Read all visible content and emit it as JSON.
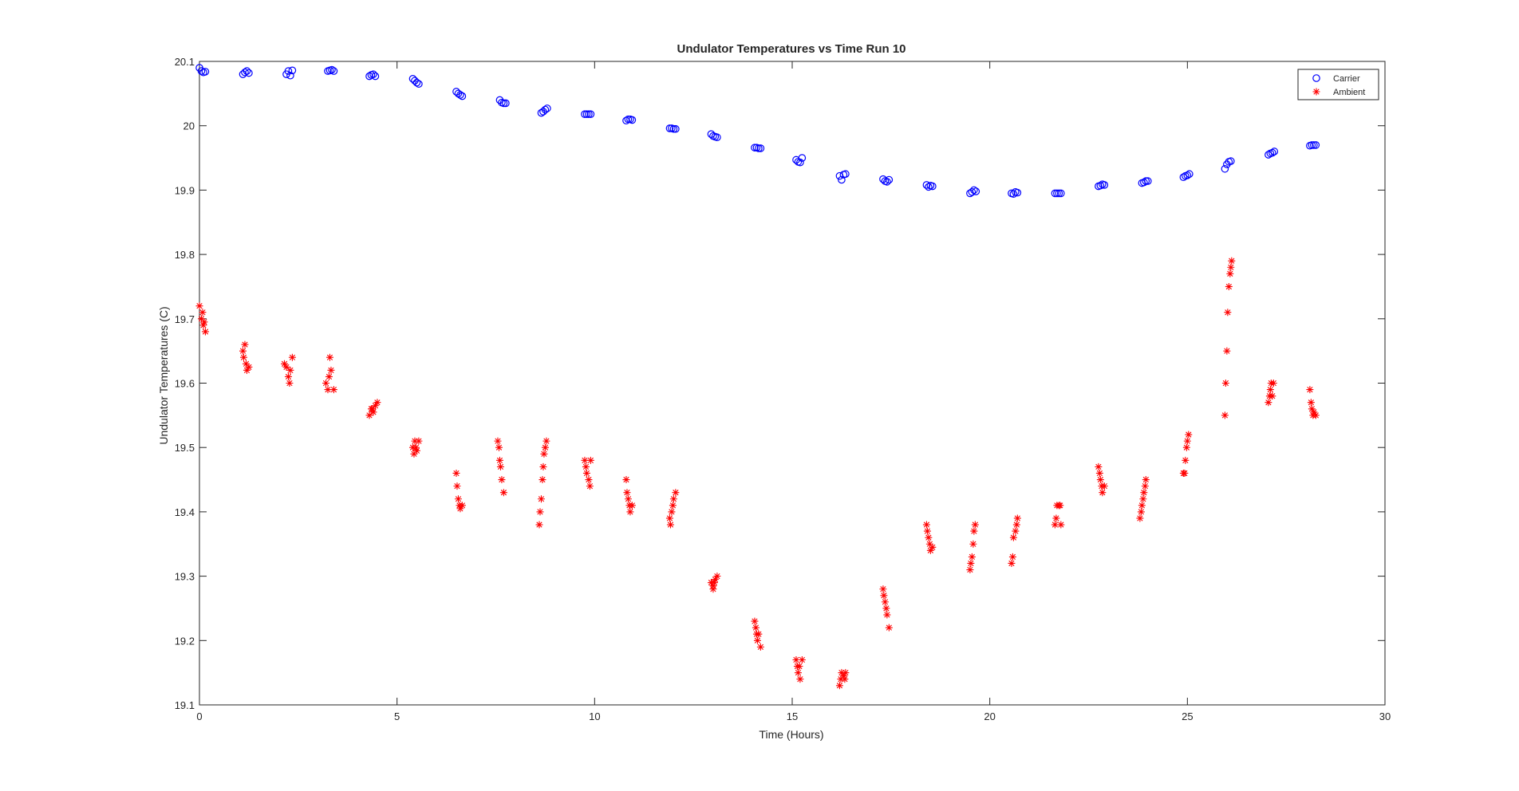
{
  "chart_data": {
    "type": "scatter",
    "title": "Undulator Temperatures vs Time Run 10",
    "xlabel": "Time (Hours)",
    "ylabel": "Undulator Temperatures (C)",
    "xlim": [
      0,
      30
    ],
    "ylim": [
      19.1,
      20.1
    ],
    "xticks": [
      0,
      5,
      10,
      15,
      20,
      25,
      30
    ],
    "yticks": [
      19.1,
      19.2,
      19.3,
      19.4,
      19.5,
      19.6,
      19.7,
      19.8,
      19.9,
      20,
      20.1
    ],
    "xtick_labels": [
      "0",
      "5",
      "10",
      "15",
      "20",
      "25",
      "30"
    ],
    "ytick_labels": [
      "19.1",
      "19.2",
      "19.3",
      "19.4",
      "19.5",
      "19.6",
      "19.7",
      "19.8",
      "19.9",
      "20",
      "20.1"
    ],
    "grid": false,
    "legend": {
      "position": "top-right",
      "entries": [
        "Carrier",
        "Ambient"
      ]
    },
    "series": [
      {
        "name": "Carrier",
        "marker": "circle",
        "color": "#0000ff",
        "points": [
          [
            0.0,
            20.09
          ],
          [
            0.05,
            20.085
          ],
          [
            0.1,
            20.083
          ],
          [
            0.15,
            20.084
          ],
          [
            1.1,
            20.08
          ],
          [
            1.15,
            20.083
          ],
          [
            1.2,
            20.085
          ],
          [
            1.25,
            20.082
          ],
          [
            2.2,
            20.08
          ],
          [
            2.25,
            20.085
          ],
          [
            2.3,
            20.078
          ],
          [
            2.35,
            20.086
          ],
          [
            3.25,
            20.085
          ],
          [
            3.3,
            20.086
          ],
          [
            3.35,
            20.087
          ],
          [
            3.4,
            20.085
          ],
          [
            4.3,
            20.077
          ],
          [
            4.35,
            20.079
          ],
          [
            4.4,
            20.08
          ],
          [
            4.45,
            20.077
          ],
          [
            5.4,
            20.073
          ],
          [
            5.45,
            20.07
          ],
          [
            5.5,
            20.067
          ],
          [
            5.55,
            20.065
          ],
          [
            6.5,
            20.053
          ],
          [
            6.55,
            20.05
          ],
          [
            6.6,
            20.048
          ],
          [
            6.65,
            20.046
          ],
          [
            7.6,
            20.04
          ],
          [
            7.65,
            20.036
          ],
          [
            7.7,
            20.035
          ],
          [
            7.75,
            20.035
          ],
          [
            8.65,
            20.02
          ],
          [
            8.7,
            20.022
          ],
          [
            8.75,
            20.025
          ],
          [
            8.8,
            20.027
          ],
          [
            9.75,
            20.018
          ],
          [
            9.8,
            20.018
          ],
          [
            9.85,
            20.018
          ],
          [
            9.9,
            20.018
          ],
          [
            10.8,
            20.008
          ],
          [
            10.85,
            20.01
          ],
          [
            10.9,
            20.01
          ],
          [
            10.95,
            20.009
          ],
          [
            11.9,
            19.996
          ],
          [
            11.95,
            19.996
          ],
          [
            12.0,
            19.995
          ],
          [
            12.05,
            19.995
          ],
          [
            12.95,
            19.987
          ],
          [
            13.0,
            19.984
          ],
          [
            13.05,
            19.983
          ],
          [
            13.1,
            19.982
          ],
          [
            14.05,
            19.966
          ],
          [
            14.1,
            19.966
          ],
          [
            14.15,
            19.965
          ],
          [
            14.2,
            19.965
          ],
          [
            15.1,
            19.947
          ],
          [
            15.15,
            19.944
          ],
          [
            15.2,
            19.943
          ],
          [
            15.25,
            19.95
          ],
          [
            16.2,
            19.922
          ],
          [
            16.25,
            19.916
          ],
          [
            16.3,
            19.924
          ],
          [
            16.35,
            19.925
          ],
          [
            17.3,
            19.917
          ],
          [
            17.35,
            19.914
          ],
          [
            17.4,
            19.913
          ],
          [
            17.45,
            19.916
          ],
          [
            18.4,
            19.908
          ],
          [
            18.45,
            19.905
          ],
          [
            18.5,
            19.907
          ],
          [
            18.55,
            19.906
          ],
          [
            19.5,
            19.895
          ],
          [
            19.55,
            19.897
          ],
          [
            19.6,
            19.9
          ],
          [
            19.65,
            19.898
          ],
          [
            20.55,
            19.895
          ],
          [
            20.6,
            19.894
          ],
          [
            20.65,
            19.897
          ],
          [
            20.7,
            19.896
          ],
          [
            21.65,
            19.895
          ],
          [
            21.7,
            19.895
          ],
          [
            21.75,
            19.895
          ],
          [
            21.8,
            19.895
          ],
          [
            22.75,
            19.906
          ],
          [
            22.8,
            19.907
          ],
          [
            22.85,
            19.909
          ],
          [
            22.9,
            19.908
          ],
          [
            23.85,
            19.911
          ],
          [
            23.9,
            19.912
          ],
          [
            23.95,
            19.914
          ],
          [
            24.0,
            19.914
          ],
          [
            24.9,
            19.92
          ],
          [
            24.95,
            19.922
          ],
          [
            25.0,
            19.923
          ],
          [
            25.05,
            19.925
          ],
          [
            25.95,
            19.933
          ],
          [
            26.0,
            19.94
          ],
          [
            26.05,
            19.944
          ],
          [
            26.1,
            19.945
          ],
          [
            27.05,
            19.955
          ],
          [
            27.1,
            19.957
          ],
          [
            27.15,
            19.958
          ],
          [
            27.2,
            19.96
          ],
          [
            28.1,
            19.969
          ],
          [
            28.15,
            19.97
          ],
          [
            28.2,
            19.97
          ],
          [
            28.25,
            19.97
          ]
        ]
      },
      {
        "name": "Ambient",
        "marker": "asterisk",
        "color": "#ff0000",
        "points": [
          [
            0.0,
            19.72
          ],
          [
            0.05,
            19.7
          ],
          [
            0.08,
            19.71
          ],
          [
            0.1,
            19.69
          ],
          [
            0.12,
            19.695
          ],
          [
            0.15,
            19.68
          ],
          [
            1.1,
            19.65
          ],
          [
            1.12,
            19.64
          ],
          [
            1.15,
            19.66
          ],
          [
            1.18,
            19.63
          ],
          [
            1.2,
            19.62
          ],
          [
            1.25,
            19.625
          ],
          [
            2.15,
            19.63
          ],
          [
            2.2,
            19.625
          ],
          [
            2.25,
            19.61
          ],
          [
            2.28,
            19.6
          ],
          [
            2.3,
            19.62
          ],
          [
            2.35,
            19.64
          ],
          [
            3.2,
            19.6
          ],
          [
            3.25,
            19.59
          ],
          [
            3.28,
            19.61
          ],
          [
            3.3,
            19.64
          ],
          [
            3.33,
            19.62
          ],
          [
            3.4,
            19.59
          ],
          [
            4.3,
            19.55
          ],
          [
            4.35,
            19.56
          ],
          [
            4.4,
            19.555
          ],
          [
            4.45,
            19.565
          ],
          [
            4.5,
            19.57
          ],
          [
            4.38,
            19.56
          ],
          [
            5.4,
            19.5
          ],
          [
            5.43,
            19.49
          ],
          [
            5.45,
            19.51
          ],
          [
            5.48,
            19.5
          ],
          [
            5.5,
            19.495
          ],
          [
            5.55,
            19.51
          ],
          [
            6.5,
            19.46
          ],
          [
            6.52,
            19.44
          ],
          [
            6.55,
            19.42
          ],
          [
            6.58,
            19.41
          ],
          [
            6.6,
            19.405
          ],
          [
            6.65,
            19.41
          ],
          [
            7.55,
            19.51
          ],
          [
            7.58,
            19.5
          ],
          [
            7.6,
            19.48
          ],
          [
            7.62,
            19.47
          ],
          [
            7.65,
            19.45
          ],
          [
            7.7,
            19.43
          ],
          [
            8.6,
            19.38
          ],
          [
            8.62,
            19.4
          ],
          [
            8.65,
            19.42
          ],
          [
            8.68,
            19.45
          ],
          [
            8.7,
            19.47
          ],
          [
            8.72,
            19.49
          ],
          [
            8.75,
            19.5
          ],
          [
            8.78,
            19.51
          ],
          [
            9.75,
            19.48
          ],
          [
            9.78,
            19.47
          ],
          [
            9.8,
            19.46
          ],
          [
            9.85,
            19.45
          ],
          [
            9.88,
            19.44
          ],
          [
            9.9,
            19.48
          ],
          [
            10.8,
            19.45
          ],
          [
            10.82,
            19.43
          ],
          [
            10.85,
            19.42
          ],
          [
            10.88,
            19.41
          ],
          [
            10.9,
            19.4
          ],
          [
            10.95,
            19.41
          ],
          [
            11.9,
            19.39
          ],
          [
            11.92,
            19.38
          ],
          [
            11.95,
            19.4
          ],
          [
            11.98,
            19.41
          ],
          [
            12.0,
            19.42
          ],
          [
            12.05,
            19.43
          ],
          [
            12.95,
            19.29
          ],
          [
            13.0,
            19.28
          ],
          [
            13.03,
            19.29
          ],
          [
            13.05,
            19.295
          ],
          [
            13.1,
            19.3
          ],
          [
            13.0,
            19.285
          ],
          [
            14.05,
            19.23
          ],
          [
            14.08,
            19.22
          ],
          [
            14.1,
            19.21
          ],
          [
            14.12,
            19.2
          ],
          [
            14.15,
            19.21
          ],
          [
            14.2,
            19.19
          ],
          [
            15.1,
            19.17
          ],
          [
            15.13,
            19.16
          ],
          [
            15.15,
            19.15
          ],
          [
            15.18,
            19.16
          ],
          [
            15.2,
            19.14
          ],
          [
            15.25,
            19.17
          ],
          [
            16.2,
            19.13
          ],
          [
            16.23,
            19.14
          ],
          [
            16.25,
            19.15
          ],
          [
            16.3,
            19.145
          ],
          [
            16.33,
            19.14
          ],
          [
            16.35,
            19.15
          ],
          [
            17.3,
            19.28
          ],
          [
            17.32,
            19.27
          ],
          [
            17.35,
            19.26
          ],
          [
            17.38,
            19.25
          ],
          [
            17.4,
            19.24
          ],
          [
            17.45,
            19.22
          ],
          [
            18.4,
            19.38
          ],
          [
            18.42,
            19.37
          ],
          [
            18.45,
            19.36
          ],
          [
            18.48,
            19.35
          ],
          [
            18.5,
            19.34
          ],
          [
            18.55,
            19.345
          ],
          [
            19.5,
            19.31
          ],
          [
            19.52,
            19.32
          ],
          [
            19.55,
            19.33
          ],
          [
            19.58,
            19.35
          ],
          [
            19.6,
            19.37
          ],
          [
            19.63,
            19.38
          ],
          [
            20.55,
            19.32
          ],
          [
            20.58,
            19.33
          ],
          [
            20.6,
            19.36
          ],
          [
            20.65,
            19.37
          ],
          [
            20.68,
            19.38
          ],
          [
            20.7,
            19.39
          ],
          [
            21.65,
            19.38
          ],
          [
            21.68,
            19.39
          ],
          [
            21.7,
            19.41
          ],
          [
            21.75,
            19.41
          ],
          [
            21.8,
            19.38
          ],
          [
            21.78,
            19.41
          ],
          [
            22.75,
            19.47
          ],
          [
            22.78,
            19.46
          ],
          [
            22.8,
            19.45
          ],
          [
            22.83,
            19.44
          ],
          [
            22.85,
            19.43
          ],
          [
            22.9,
            19.44
          ],
          [
            23.8,
            19.39
          ],
          [
            23.83,
            19.4
          ],
          [
            23.85,
            19.41
          ],
          [
            23.88,
            19.42
          ],
          [
            23.9,
            19.43
          ],
          [
            23.93,
            19.44
          ],
          [
            23.95,
            19.45
          ],
          [
            24.9,
            19.46
          ],
          [
            24.93,
            19.46
          ],
          [
            24.95,
            19.48
          ],
          [
            24.98,
            19.5
          ],
          [
            25.0,
            19.51
          ],
          [
            25.03,
            19.52
          ],
          [
            25.95,
            19.55
          ],
          [
            25.97,
            19.6
          ],
          [
            26.0,
            19.65
          ],
          [
            26.02,
            19.71
          ],
          [
            26.05,
            19.75
          ],
          [
            26.08,
            19.77
          ],
          [
            26.1,
            19.78
          ],
          [
            26.12,
            19.79
          ],
          [
            27.05,
            19.57
          ],
          [
            27.08,
            19.58
          ],
          [
            27.1,
            19.59
          ],
          [
            27.12,
            19.6
          ],
          [
            27.15,
            19.58
          ],
          [
            27.18,
            19.6
          ],
          [
            28.1,
            19.59
          ],
          [
            28.13,
            19.57
          ],
          [
            28.15,
            19.56
          ],
          [
            28.18,
            19.55
          ],
          [
            28.2,
            19.555
          ],
          [
            28.25,
            19.55
          ]
        ]
      }
    ]
  }
}
